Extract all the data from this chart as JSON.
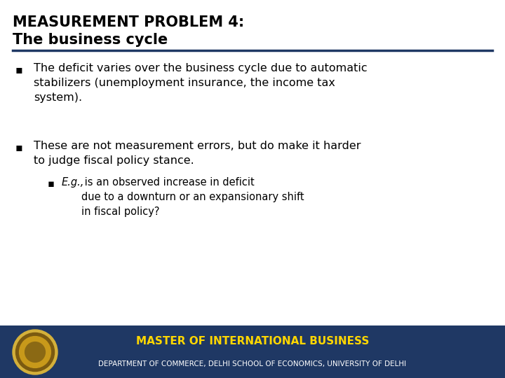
{
  "title_line1": "MEASUREMENT PROBLEM 4:",
  "title_line2": "The business cycle",
  "title_color": "#000000",
  "title_fontsize": 15,
  "divider_color": "#1F3864",
  "divider_linewidth": 2.5,
  "bullet1_text": "The deficit varies over the business cycle due to automatic\nstabilizers (unemployment insurance, the income tax\nsystem).",
  "bullet2_text": "These are not measurement errors, but do make it harder\nto judge fiscal policy stance.",
  "sub_bullet_italic": "E.g.,",
  "sub_bullet_rest": " is an observed increase in deficit\ndue to a downturn or an expansionary shift\nin fiscal policy?",
  "bullet_color": "#000000",
  "bullet_fontsize": 11.5,
  "sub_bullet_fontsize": 10.5,
  "background_color": "#ffffff",
  "footer_bg_color": "#1F3864",
  "footer_text1": "MASTER OF INTERNATIONAL BUSINESS",
  "footer_text2": "DEPARTMENT OF COMMERCE, DELHI SCHOOL OF ECONOMICS, UNIVERSITY OF DELHI",
  "footer_text1_color": "#FFD700",
  "footer_text2_color": "#ffffff",
  "footer_fontsize1": 11,
  "footer_fontsize2": 7.5,
  "bullet_marker": "▪",
  "sub_bullet_marker": "▪"
}
